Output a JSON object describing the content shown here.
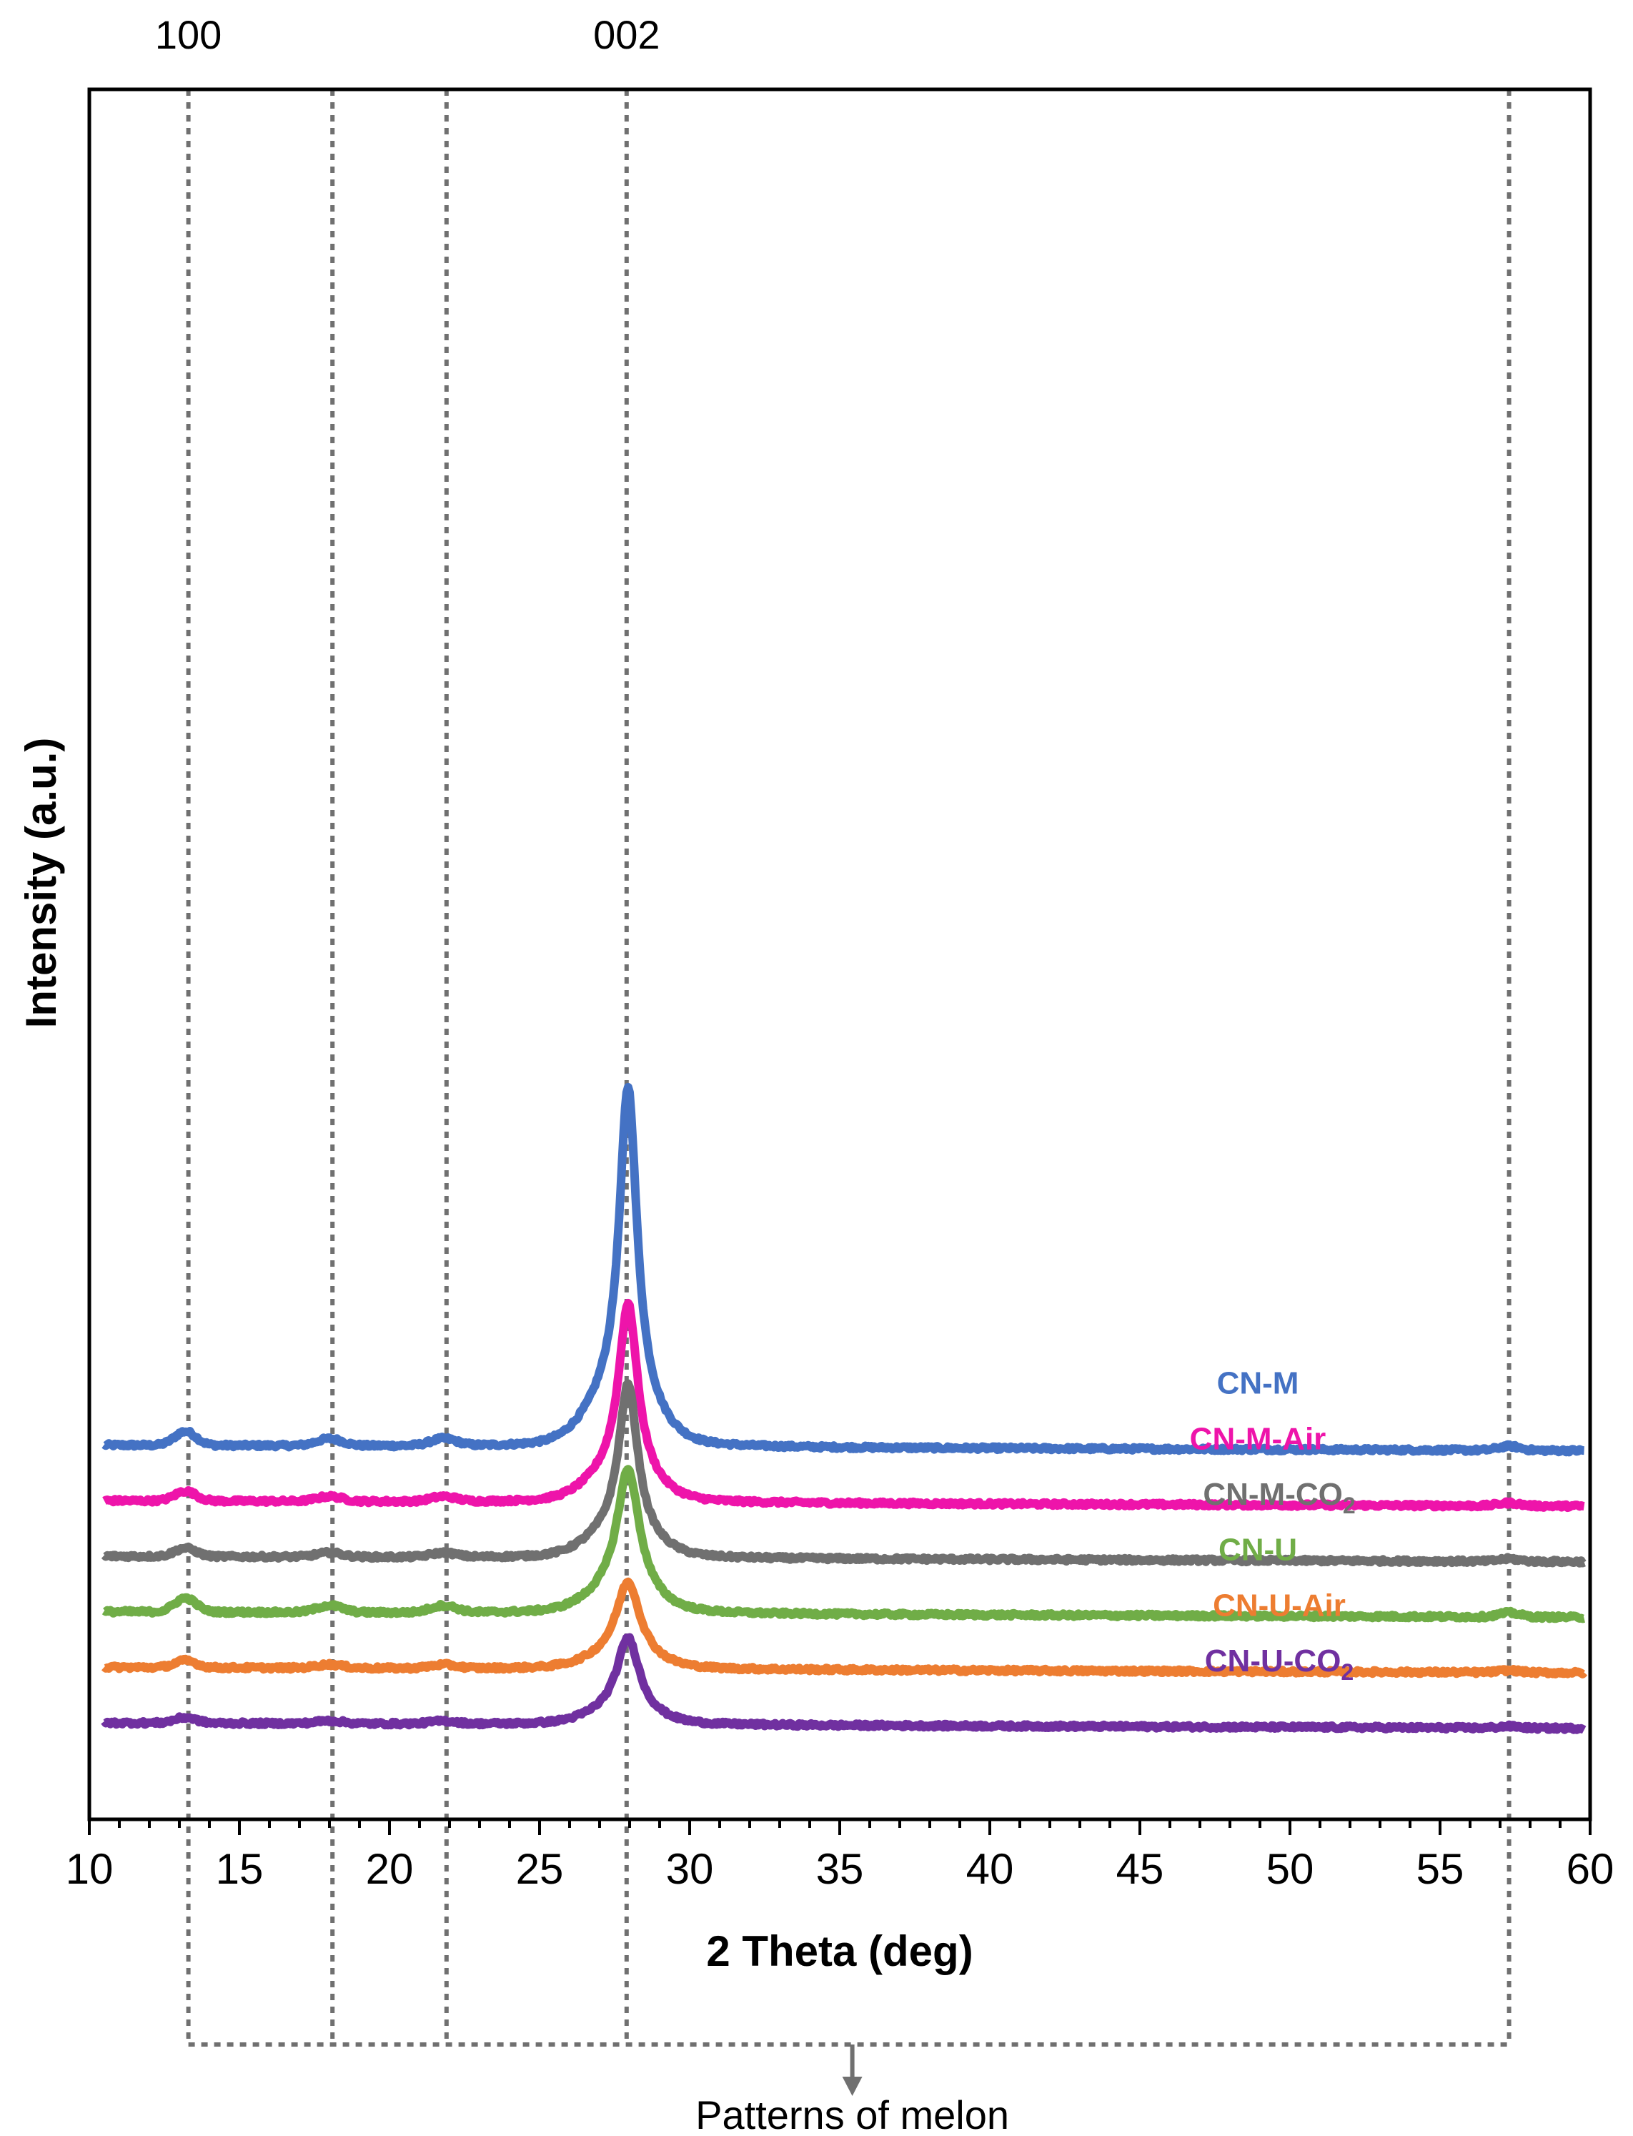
{
  "chart_data": {
    "type": "line",
    "xlabel": "2 Theta (deg)",
    "ylabel": "Intensity (a.u.)",
    "xlim": [
      10,
      60
    ],
    "xticks": [
      10,
      15,
      20,
      25,
      30,
      35,
      40,
      45,
      50,
      55,
      60
    ],
    "grid": false,
    "legend": "inline labels to the right of each trace",
    "peak_labels": [
      {
        "text": "100",
        "x": 13.3
      },
      {
        "text": "002",
        "x": 27.9
      }
    ],
    "reference_lines_x": [
      13.3,
      18.1,
      21.9,
      27.9,
      57.3
    ],
    "melon_note": "Patterns of melon",
    "series": [
      {
        "name": "CN-M",
        "name_main": "CN-M",
        "name_sub": "",
        "color": "#4472C4",
        "baseline": 1.0,
        "peak_height": 1.45,
        "peak_width": 0.35,
        "minor_height": 0.05
      },
      {
        "name": "CN-M-Air",
        "name_main": "CN-M-Air",
        "name_sub": "",
        "color": "#EE14AA",
        "baseline": 0.8,
        "peak_height": 0.8,
        "peak_width": 0.38,
        "minor_height": 0.035
      },
      {
        "name": "CN-M-CO2",
        "name_main": "CN-M-CO",
        "name_sub": "2",
        "color": "#707070",
        "baseline": 0.6,
        "peak_height": 0.7,
        "peak_width": 0.38,
        "minor_height": 0.03
      },
      {
        "name": "CN-U",
        "name_main": "CN-U",
        "name_sub": "",
        "color": "#70AD47",
        "baseline": 0.4,
        "peak_height": 0.58,
        "peak_width": 0.45,
        "minor_height": 0.05
      },
      {
        "name": "CN-U-Air",
        "name_main": "CN-U-Air",
        "name_sub": "",
        "color": "#ED7D31",
        "baseline": 0.2,
        "peak_height": 0.35,
        "peak_width": 0.48,
        "minor_height": 0.025
      },
      {
        "name": "CN-U-CO2",
        "name_main": "CN-U-CO",
        "name_sub": "2",
        "color": "#7030A0",
        "baseline": 0.0,
        "peak_height": 0.35,
        "peak_width": 0.45,
        "minor_height": 0.02
      }
    ]
  }
}
